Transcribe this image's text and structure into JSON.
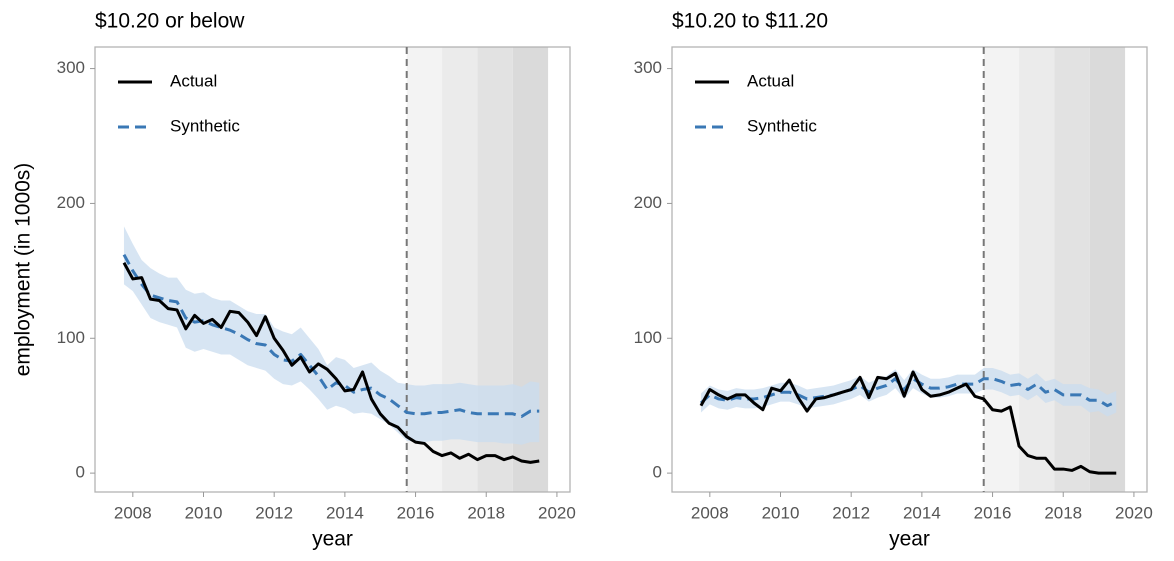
{
  "chart_data": [
    {
      "type": "line",
      "title": "$10.20 or below",
      "ylabel": "employment (in 1000s)",
      "xlabel": "year",
      "x": [
        2007.75,
        2008,
        2008.25,
        2008.5,
        2008.75,
        2009,
        2009.25,
        2009.5,
        2009.75,
        2010,
        2010.25,
        2010.5,
        2010.75,
        2011,
        2011.25,
        2011.5,
        2011.75,
        2012,
        2012.25,
        2012.5,
        2012.75,
        2013,
        2013.25,
        2013.5,
        2013.75,
        2014,
        2014.25,
        2014.5,
        2014.75,
        2015,
        2015.25,
        2015.5,
        2015.75,
        2016,
        2016.25,
        2016.5,
        2016.75,
        2017,
        2017.25,
        2017.5,
        2017.75,
        2018,
        2018.25,
        2018.5,
        2018.75,
        2019,
        2019.25,
        2019.5
      ],
      "series": [
        {
          "name": "Actual",
          "color": "#000000",
          "values": [
            156,
            144,
            145,
            129,
            128,
            122,
            121,
            107,
            117,
            111,
            114,
            108,
            120,
            119,
            112,
            102,
            116,
            100,
            91,
            80,
            86,
            75,
            81,
            77,
            70,
            61,
            62,
            75,
            55,
            44,
            37,
            34,
            27,
            23,
            22,
            16,
            13,
            15,
            11,
            14,
            10,
            13,
            13,
            10,
            12,
            9,
            8,
            9
          ]
        },
        {
          "name": "Synthetic",
          "color": "#3a78b5",
          "dashed": true,
          "band_color": "#c9dcef",
          "values": [
            162,
            150,
            140,
            132,
            130,
            128,
            127,
            115,
            112,
            113,
            110,
            108,
            106,
            103,
            99,
            96,
            95,
            88,
            84,
            83,
            88,
            80,
            72,
            62,
            67,
            65,
            60,
            62,
            63,
            58,
            55,
            50,
            45,
            44,
            44,
            45,
            45,
            46,
            47,
            45,
            44,
            44,
            44,
            44,
            44,
            42,
            46,
            46
          ],
          "lower": [
            140,
            135,
            125,
            115,
            112,
            110,
            108,
            93,
            90,
            92,
            90,
            88,
            88,
            84,
            80,
            78,
            76,
            70,
            66,
            65,
            68,
            62,
            55,
            47,
            50,
            48,
            44,
            45,
            44,
            40,
            36,
            30,
            24,
            23,
            23,
            24,
            24,
            25,
            25,
            24,
            23,
            23,
            23,
            22,
            22,
            21,
            23,
            23
          ],
          "upper": [
            183,
            170,
            158,
            152,
            148,
            145,
            145,
            136,
            133,
            134,
            130,
            128,
            128,
            124,
            120,
            118,
            118,
            108,
            105,
            103,
            108,
            100,
            92,
            80,
            86,
            84,
            78,
            80,
            82,
            76,
            72,
            67,
            66,
            65,
            65,
            66,
            66,
            66,
            67,
            66,
            65,
            65,
            65,
            65,
            66,
            64,
            68,
            67
          ]
        }
      ],
      "vline": 2015.75,
      "shade_bounds": [
        2015.75,
        2016.75,
        2017.75,
        2018.75,
        2019.75
      ],
      "shade_colors": [
        "#f3f3f3",
        "#ebebeb",
        "#e2e2e2",
        "#dadada"
      ],
      "xlim": [
        2006.93,
        2020.37
      ],
      "ylim": [
        -14,
        316
      ],
      "xticks": [
        2008,
        2010,
        2012,
        2014,
        2016,
        2018,
        2020
      ],
      "yticks": [
        0,
        100,
        200,
        300
      ],
      "legend": "top-left"
    },
    {
      "type": "line",
      "title": "$10.20 to $11.20",
      "xlabel": "year",
      "x": [
        2007.75,
        2008,
        2008.25,
        2008.5,
        2008.75,
        2009,
        2009.25,
        2009.5,
        2009.75,
        2010,
        2010.25,
        2010.5,
        2010.75,
        2011,
        2011.25,
        2011.5,
        2011.75,
        2012,
        2012.25,
        2012.5,
        2012.75,
        2013,
        2013.25,
        2013.5,
        2013.75,
        2014,
        2014.25,
        2014.5,
        2014.75,
        2015,
        2015.25,
        2015.5,
        2015.75,
        2016,
        2016.25,
        2016.5,
        2016.75,
        2017,
        2017.25,
        2017.5,
        2017.75,
        2018,
        2018.25,
        2018.5,
        2018.75,
        2019,
        2019.25,
        2019.5
      ],
      "series": [
        {
          "name": "Actual",
          "color": "#000000",
          "values": [
            50,
            62,
            58,
            55,
            58,
            58,
            52,
            47,
            63,
            61,
            69,
            56,
            46,
            55,
            56,
            58,
            60,
            62,
            71,
            56,
            71,
            70,
            74,
            57,
            75,
            62,
            57,
            58,
            60,
            63,
            66,
            57,
            55,
            47,
            46,
            49,
            20,
            13,
            11,
            11,
            3,
            3,
            2,
            5,
            1,
            0,
            0,
            0
          ]
        },
        {
          "name": "Synthetic",
          "color": "#3a78b5",
          "dashed": true,
          "band_color": "#c9dcef",
          "values": [
            52,
            58,
            55,
            54,
            56,
            55,
            55,
            56,
            58,
            60,
            60,
            58,
            55,
            56,
            57,
            58,
            60,
            62,
            65,
            60,
            63,
            65,
            70,
            62,
            70,
            66,
            63,
            63,
            64,
            66,
            66,
            66,
            70,
            70,
            68,
            65,
            66,
            62,
            66,
            60,
            62,
            58,
            58,
            58,
            54,
            54,
            50,
            53
          ],
          "lower": [
            45,
            51,
            48,
            47,
            49,
            48,
            48,
            49,
            51,
            53,
            53,
            51,
            48,
            49,
            50,
            51,
            53,
            55,
            58,
            53,
            56,
            58,
            63,
            55,
            63,
            59,
            56,
            56,
            57,
            59,
            59,
            59,
            62,
            62,
            60,
            57,
            58,
            54,
            58,
            52,
            54,
            50,
            50,
            50,
            45,
            46,
            42,
            45
          ],
          "upper": [
            59,
            65,
            62,
            61,
            63,
            62,
            62,
            63,
            65,
            67,
            67,
            65,
            62,
            63,
            64,
            65,
            67,
            69,
            72,
            67,
            70,
            72,
            77,
            69,
            77,
            73,
            70,
            70,
            71,
            73,
            73,
            73,
            78,
            78,
            76,
            73,
            74,
            70,
            74,
            68,
            70,
            66,
            66,
            66,
            63,
            62,
            58,
            61
          ]
        }
      ],
      "vline": 2015.75,
      "shade_bounds": [
        2015.75,
        2016.75,
        2017.75,
        2018.75,
        2019.75
      ],
      "shade_colors": [
        "#f3f3f3",
        "#ebebeb",
        "#e2e2e2",
        "#dadada"
      ],
      "xlim": [
        2006.93,
        2020.37
      ],
      "ylim": [
        -14,
        316
      ],
      "xticks": [
        2008,
        2010,
        2012,
        2014,
        2016,
        2018,
        2020
      ],
      "yticks": [
        0,
        100,
        200,
        300
      ],
      "legend": "top-left"
    }
  ]
}
